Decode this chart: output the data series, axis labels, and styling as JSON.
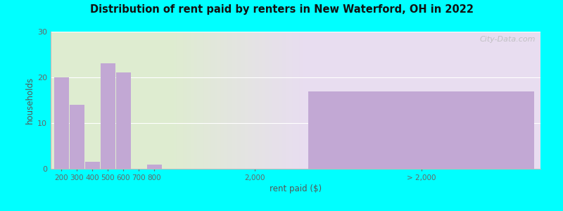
{
  "title": "Distribution of rent paid by renters in New Waterford, OH in 2022",
  "xlabel": "rent paid ($)",
  "ylabel": "households",
  "bar_color": "#c2a8d4",
  "background_color": "#00ffff",
  "yticks": [
    0,
    10,
    20,
    30
  ],
  "ylim": [
    0,
    30
  ],
  "bars": [
    {
      "label": "200",
      "value": 20
    },
    {
      "label": "300",
      "value": 14
    },
    {
      "label": "400",
      "value": 1.5
    },
    {
      "label": "500",
      "value": 23
    },
    {
      "label": "600",
      "value": 21
    },
    {
      "label": "700",
      "value": 0
    },
    {
      "label": "800",
      "value": 1
    }
  ],
  "special_bar": {
    "label": "> 2,000",
    "value": 17
  },
  "xtick_2000": "2,000",
  "watermark": "City-Data.com",
  "bg_left_color": "#deecd0",
  "bg_right_color": "#e8ddf0",
  "grid_color": "#ffffff"
}
